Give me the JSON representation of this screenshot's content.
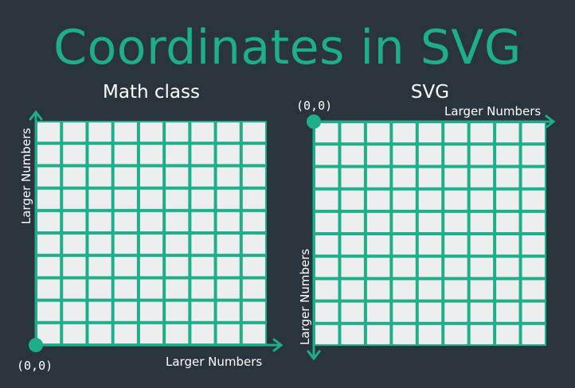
{
  "title": "Coordinates in SVG",
  "panels": {
    "math": {
      "title": "Math class",
      "origin_label": "(0,0)",
      "x_axis_label": "Larger Numbers",
      "y_axis_label": "Larger Numbers"
    },
    "svg": {
      "title": "SVG",
      "origin_label": "(0,0)",
      "x_axis_label": "Larger Numbers",
      "y_axis_label": "Larger Numbers"
    }
  },
  "grid": {
    "columns": 9,
    "rows": 10
  },
  "colors": {
    "background": "#2a343d",
    "accent": "#1fae8a",
    "cell": "#eceef0",
    "text": "#ffffff"
  }
}
